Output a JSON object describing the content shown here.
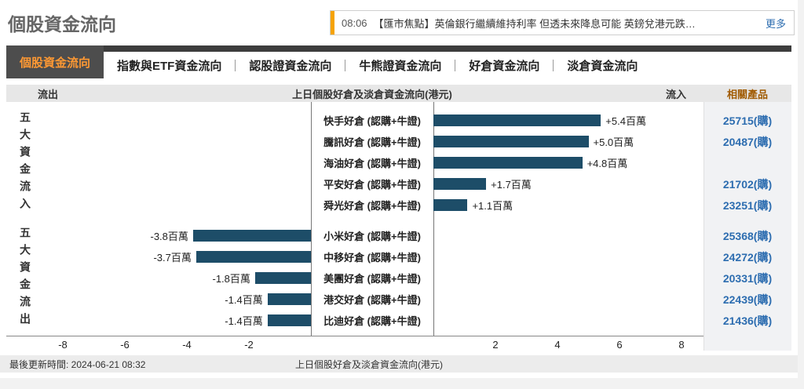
{
  "header": {
    "title": "個股資金流向",
    "news": {
      "time": "08:06",
      "headline": "【匯市焦點】英倫銀行繼續維持利率 但透未來降息可能 英鎊兌港元跌…",
      "more_label": "更多"
    }
  },
  "tabs": [
    {
      "label": "個股資金流向",
      "active": true
    },
    {
      "label": "指數與ETF資金流向",
      "active": false
    },
    {
      "label": "認股證資金流向",
      "active": false
    },
    {
      "label": "牛熊證資金流向",
      "active": false
    },
    {
      "label": "好倉資金流向",
      "active": false
    },
    {
      "label": "淡倉資金流向",
      "active": false
    }
  ],
  "table_header": {
    "outflow": "流出",
    "center_title": "上日個股好倉及淡倉資金流向(港元)",
    "inflow": "流入",
    "products": "相關產品"
  },
  "groups": [
    {
      "side_label": "五大資金流入",
      "rows": [
        {
          "label": "快手好倉 (認購+牛證)",
          "value": 5.4,
          "value_label": "+5.4百萬",
          "product": "25715(購)"
        },
        {
          "label": "騰訊好倉 (認購+牛證)",
          "value": 5.0,
          "value_label": "+5.0百萬",
          "product": "20487(購)"
        },
        {
          "label": "海油好倉 (認購+牛證)",
          "value": 4.8,
          "value_label": "+4.8百萬",
          "product": ""
        },
        {
          "label": "平安好倉 (認購+牛證)",
          "value": 1.7,
          "value_label": "+1.7百萬",
          "product": "21702(購)"
        },
        {
          "label": "舜光好倉 (認購+牛證)",
          "value": 1.1,
          "value_label": "+1.1百萬",
          "product": "23251(購)"
        }
      ]
    },
    {
      "side_label": "五大資金流出",
      "rows": [
        {
          "label": "小米好倉 (認購+牛證)",
          "value": -3.8,
          "value_label": "-3.8百萬",
          "product": "25368(購)"
        },
        {
          "label": "中移好倉 (認購+牛證)",
          "value": -3.7,
          "value_label": "-3.7百萬",
          "product": "24272(購)"
        },
        {
          "label": "美團好倉 (認購+牛證)",
          "value": -1.8,
          "value_label": "-1.8百萬",
          "product": "20331(購)"
        },
        {
          "label": "港交好倉 (認購+牛證)",
          "value": -1.4,
          "value_label": "-1.4百萬",
          "product": "22439(購)"
        },
        {
          "label": "比迪好倉 (認購+牛證)",
          "value": -1.4,
          "value_label": "-1.4百萬",
          "product": "21436(購)"
        }
      ]
    }
  ],
  "axis": {
    "ticks_left": [
      "-8",
      "-6",
      "-4",
      "-2"
    ],
    "ticks_right": [
      "2",
      "4",
      "6",
      "8"
    ]
  },
  "footer": {
    "updated": "最後更新時間: 2024-06-21 08:32",
    "caption": "上日個股好倉及淡倉資金流向(港元)"
  },
  "colors": {
    "bar": "#1d4d68",
    "accent_orange": "#f5a300",
    "link_blue": "#2d6db0",
    "products_header": "#a05a00",
    "active_tab_bg": "#4d4d4d",
    "active_tab_text": "#ff9933"
  },
  "chart_data": {
    "type": "bar",
    "orientation": "horizontal",
    "title": "上日個股好倉及淡倉資金流向(港元)",
    "unit": "百萬(港元)",
    "categories": [
      "快手好倉 (認購+牛證)",
      "騰訊好倉 (認購+牛證)",
      "海油好倉 (認購+牛證)",
      "平安好倉 (認購+牛證)",
      "舜光好倉 (認購+牛證)",
      "小米好倉 (認購+牛證)",
      "中移好倉 (認購+牛證)",
      "美團好倉 (認購+牛證)",
      "港交好倉 (認購+牛證)",
      "比迪好倉 (認購+牛證)"
    ],
    "values": [
      5.4,
      5.0,
      4.8,
      1.7,
      1.1,
      -3.8,
      -3.7,
      -1.8,
      -1.4,
      -1.4
    ],
    "xlim": [
      -9,
      9
    ],
    "xticks": [
      -8,
      -6,
      -4,
      -2,
      2,
      4,
      6,
      8
    ],
    "group_labels": [
      "五大資金流入",
      "五大資金流出"
    ],
    "legend": "none",
    "grid": false
  }
}
